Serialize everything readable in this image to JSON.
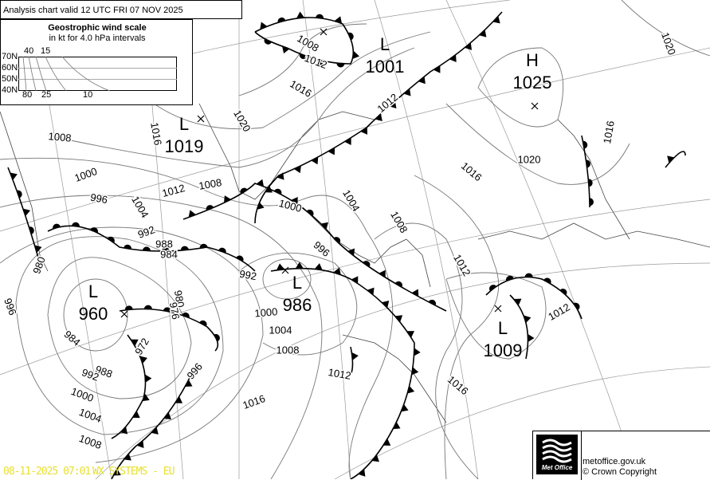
{
  "header": {
    "title": "Analysis chart valid 12 UTC FRI 07  NOV 2025"
  },
  "wind_scale": {
    "title": "Geostrophic wind scale",
    "subtitle": "in kt for 4.0 hPa intervals",
    "latitudes": [
      "70N",
      "60N",
      "50N",
      "40N"
    ],
    "top_ticks": [
      "40",
      "15"
    ],
    "bottom_ticks": [
      "80",
      "25",
      "10"
    ]
  },
  "pressure_centers": [
    {
      "type": "L",
      "value": "1001"
    },
    {
      "type": "H",
      "value": "1025"
    },
    {
      "type": "L",
      "value": "1019"
    },
    {
      "type": "L",
      "value": "960"
    },
    {
      "type": "L",
      "value": "986"
    },
    {
      "type": "L",
      "value": "1009"
    }
  ],
  "isobar_labels": [
    "1008",
    "1012",
    "1016",
    "1020",
    "1016",
    "1008",
    "1000",
    "996",
    "1012",
    "1008",
    "1004",
    "992",
    "988",
    "984",
    "980",
    "996",
    "992",
    "1000",
    "1004",
    "1008",
    "1012",
    "980",
    "976",
    "972",
    "984",
    "988",
    "992",
    "996",
    "1000",
    "1004",
    "1008",
    "1016",
    "1016",
    "1012",
    "1008",
    "1004",
    "1000",
    "996",
    "1012",
    "1016",
    "1020",
    "1016",
    "1020",
    "1012"
  ],
  "footer": {
    "timestamp": "08-11-2025  07:01",
    "system": "WX SYSTEMS - EU",
    "website": "metoffice.gov.uk",
    "copyright": "© Crown Copyright",
    "logo_text": "Met Office"
  },
  "colors": {
    "stamp": "#e8e030",
    "isobar": "#777777",
    "front": "#000000"
  }
}
